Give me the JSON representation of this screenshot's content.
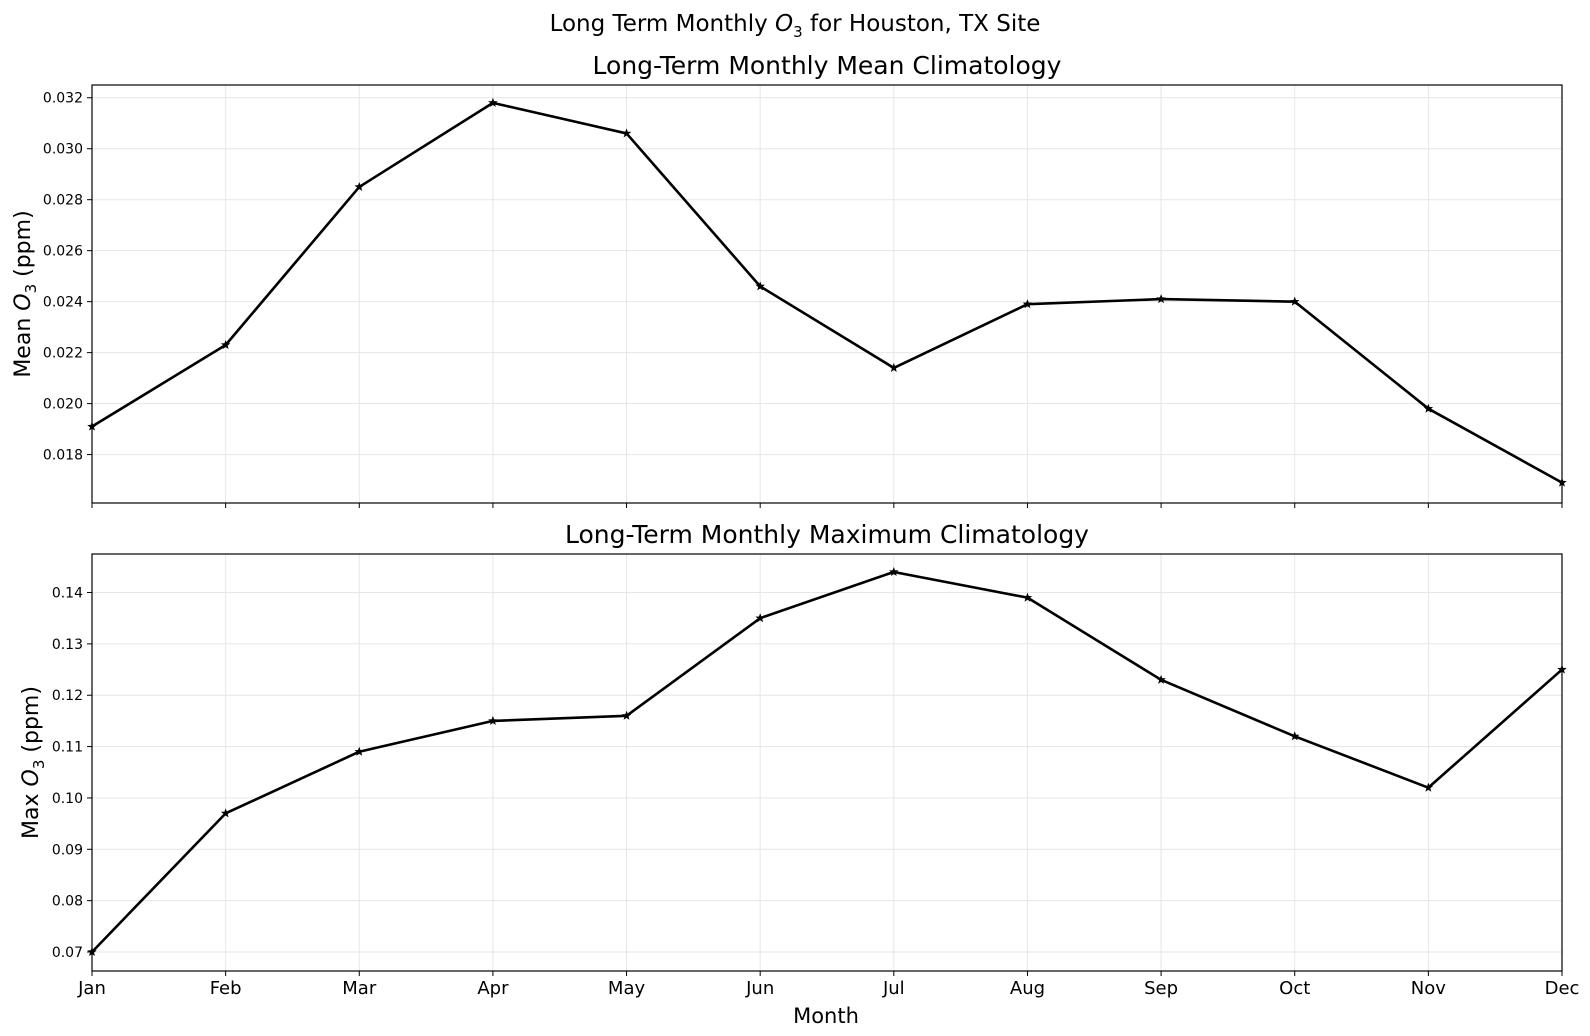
{
  "figure": {
    "suptitle_prefix": "Long Term Monthly ",
    "suptitle_species": "O",
    "suptitle_sub": "3",
    "suptitle_suffix": " for Houston, TX Site",
    "xlabel": "Month"
  },
  "chart_data": [
    {
      "type": "line",
      "title": "Long-Term Monthly Mean Climatology",
      "ylabel_prefix": "Mean ",
      "ylabel_species": "O",
      "ylabel_sub": "3",
      "ylabel_suffix": " (ppm)",
      "categories": [
        "Jan",
        "Feb",
        "Mar",
        "Apr",
        "May",
        "Jun",
        "Jul",
        "Aug",
        "Sep",
        "Oct",
        "Nov",
        "Dec"
      ],
      "values": [
        0.0191,
        0.0223,
        0.0285,
        0.0318,
        0.0306,
        0.0246,
        0.0214,
        0.0239,
        0.0241,
        0.024,
        0.0198,
        0.0169
      ],
      "ylim": [
        0.0161,
        0.0325
      ],
      "yticks": [
        0.018,
        0.02,
        0.022,
        0.024,
        0.026,
        0.028,
        0.03,
        0.032
      ],
      "ytick_labels": [
        "0.018",
        "0.020",
        "0.022",
        "0.024",
        "0.026",
        "0.028",
        "0.030",
        "0.032"
      ],
      "grid": true,
      "marker": "star",
      "color": "#000000"
    },
    {
      "type": "line",
      "title": "Long-Term Monthly Maximum Climatology",
      "ylabel_prefix": "Max ",
      "ylabel_species": "O",
      "ylabel_sub": "3",
      "ylabel_suffix": " (ppm)",
      "categories": [
        "Jan",
        "Feb",
        "Mar",
        "Apr",
        "May",
        "Jun",
        "Jul",
        "Aug",
        "Sep",
        "Oct",
        "Nov",
        "Dec"
      ],
      "values": [
        0.07,
        0.097,
        0.109,
        0.115,
        0.116,
        0.135,
        0.144,
        0.139,
        0.123,
        0.112,
        0.102,
        0.125
      ],
      "ylim": [
        0.0663,
        0.1475
      ],
      "yticks": [
        0.07,
        0.08,
        0.09,
        0.1,
        0.11,
        0.12,
        0.13,
        0.14
      ],
      "ytick_labels": [
        "0.07",
        "0.08",
        "0.09",
        "0.10",
        "0.11",
        "0.12",
        "0.13",
        "0.14"
      ],
      "grid": true,
      "marker": "star",
      "color": "#000000"
    }
  ]
}
